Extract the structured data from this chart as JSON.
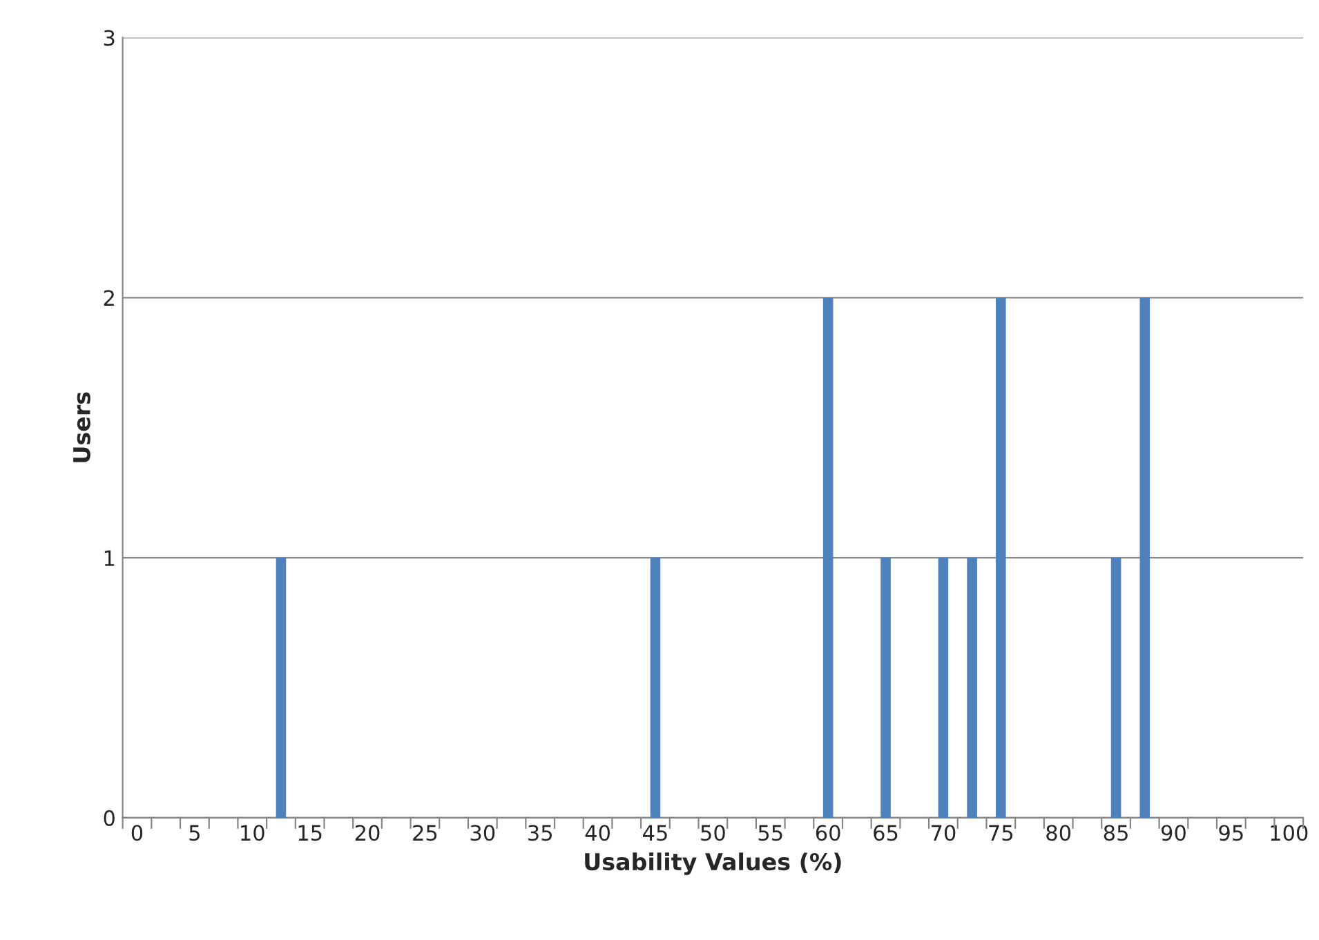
{
  "chart_data": {
    "type": "bar",
    "xlabel": "Usability Values (%)",
    "ylabel": "Users",
    "categories": [
      "0",
      null,
      "5",
      null,
      "10",
      null,
      "15",
      null,
      "20",
      null,
      "25",
      null,
      "30",
      null,
      "35",
      null,
      "40",
      null,
      "45",
      null,
      "50",
      null,
      "55",
      null,
      "60",
      null,
      "65",
      null,
      "70",
      null,
      "75",
      null,
      "80",
      null,
      "85",
      null,
      "90",
      null,
      "95",
      null,
      "100"
    ],
    "values": [
      0,
      0,
      0,
      0,
      0,
      1,
      0,
      0,
      0,
      0,
      0,
      0,
      0,
      0,
      0,
      0,
      0,
      0,
      1,
      0,
      0,
      0,
      0,
      0,
      2,
      0,
      1,
      0,
      1,
      1,
      2,
      0,
      0,
      0,
      1,
      2,
      0,
      0,
      0,
      0,
      0
    ],
    "color": "#4f81bd",
    "ylim": [
      0,
      3
    ],
    "yticks": [
      0,
      1,
      2,
      3
    ],
    "grid": "y",
    "legend": false
  }
}
